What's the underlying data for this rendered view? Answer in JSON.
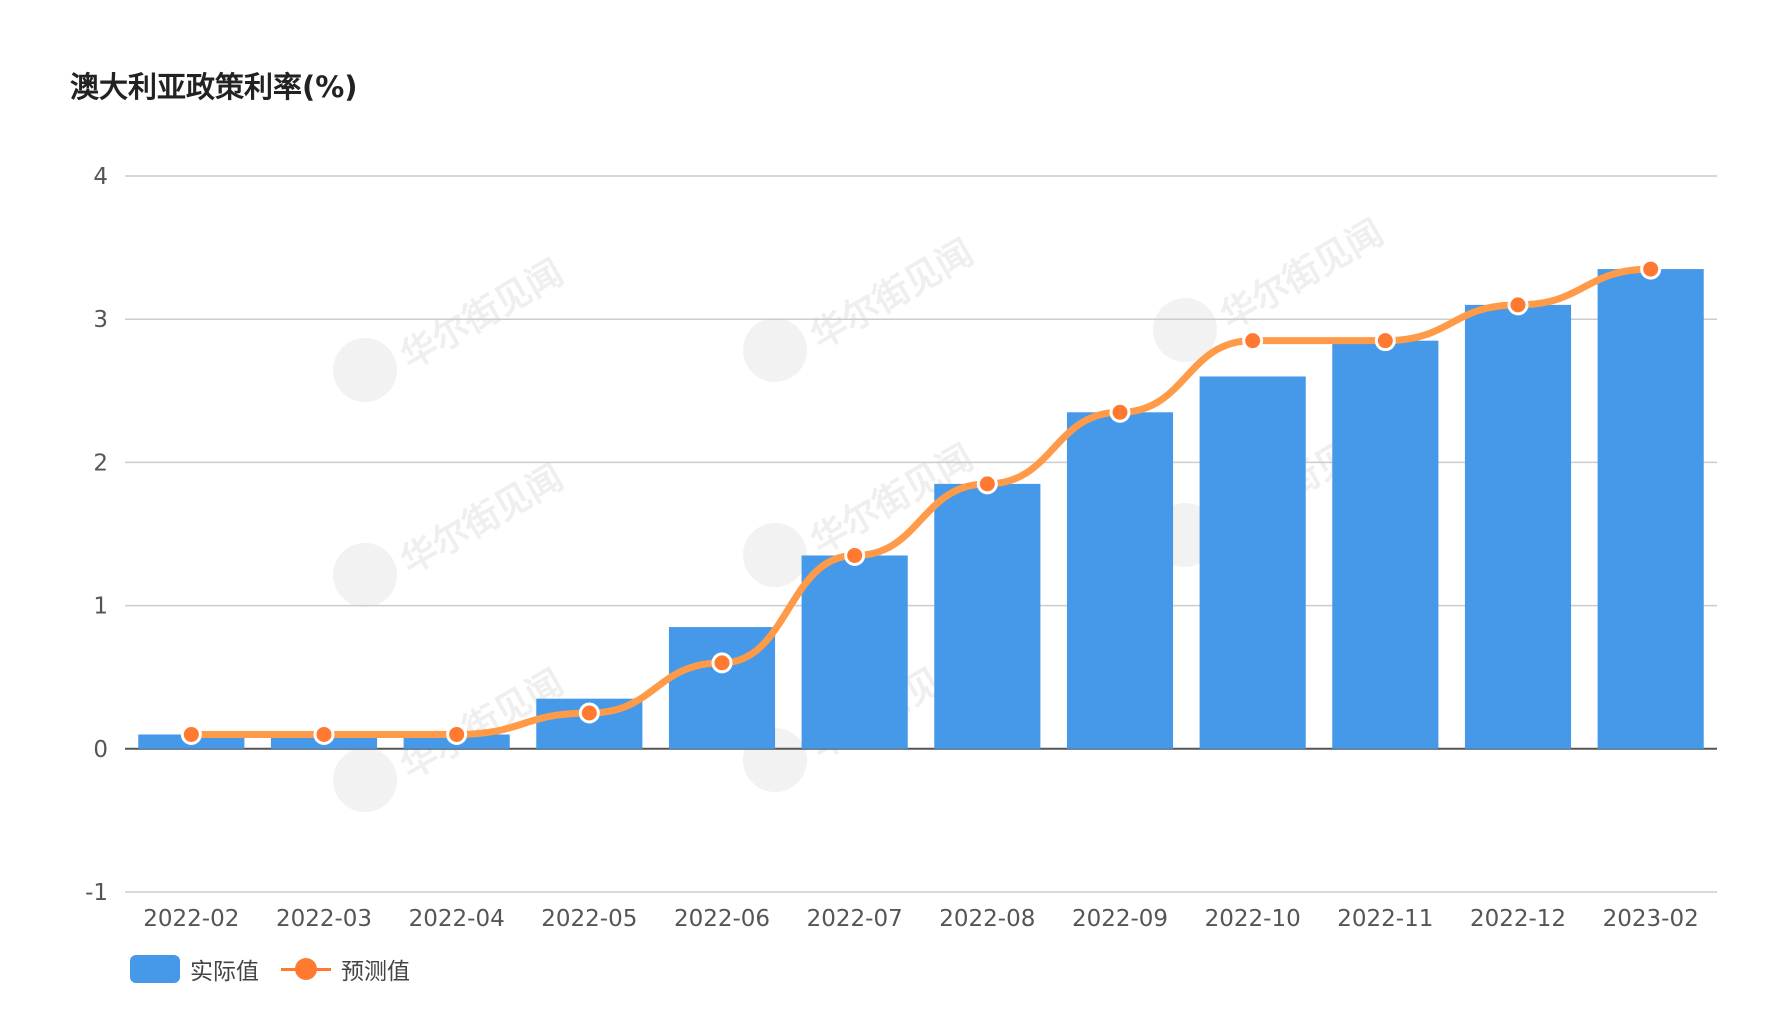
{
  "chart_data": {
    "type": "bar",
    "title": "澳大利亚政策利率(%)",
    "categories": [
      "2022-02",
      "2022-03",
      "2022-04",
      "2022-05",
      "2022-06",
      "2022-07",
      "2022-08",
      "2022-09",
      "2022-10",
      "2022-11",
      "2022-12",
      "2023-02"
    ],
    "series": [
      {
        "name": "实际值",
        "type": "bar",
        "color": "#4599e8",
        "values": [
          0.1,
          0.1,
          0.1,
          0.35,
          0.85,
          1.35,
          1.85,
          2.35,
          2.6,
          2.85,
          3.1,
          3.35
        ]
      },
      {
        "name": "预测值",
        "type": "line",
        "color": "#ff9a48",
        "marker_color": "#ff7a30",
        "values": [
          0.1,
          0.1,
          0.1,
          0.25,
          0.6,
          1.35,
          1.85,
          2.35,
          2.85,
          2.85,
          3.1,
          3.35
        ]
      }
    ],
    "ylim": [
      -1,
      4
    ],
    "yticks": [
      -1,
      0,
      1,
      2,
      3,
      4
    ],
    "grid": true,
    "legend": "bottom-left",
    "watermark": "华尔街见闻"
  }
}
